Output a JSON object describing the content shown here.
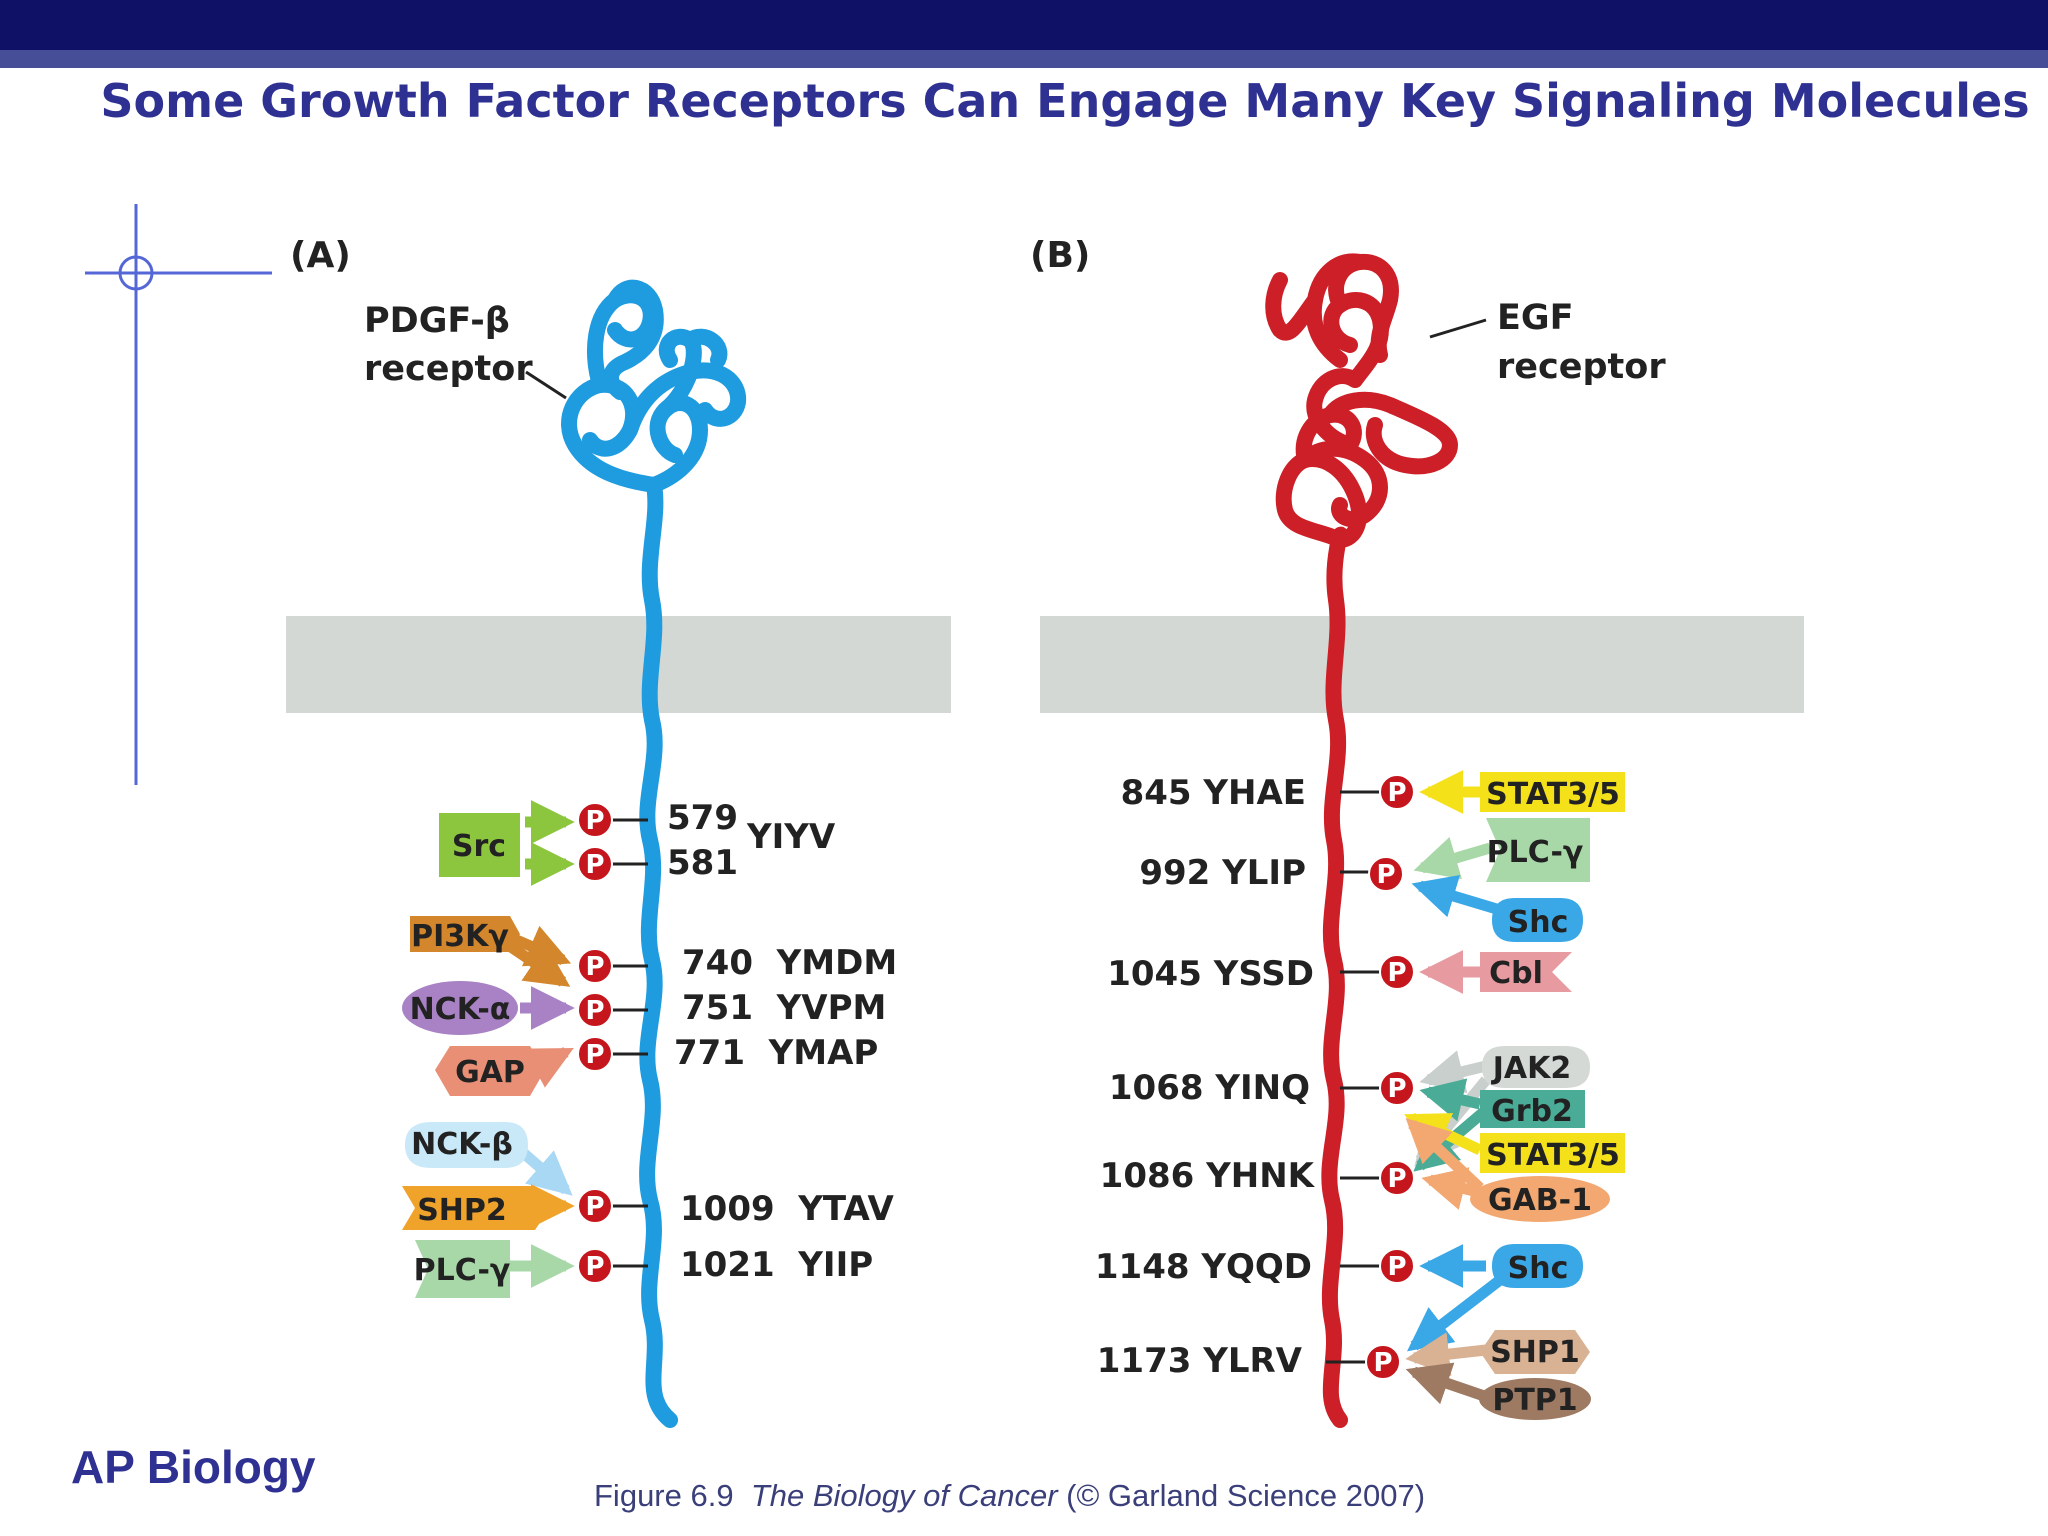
{
  "title": "Some Growth Factor Receptors Can Engage Many Key Signaling Molecules",
  "footer": {
    "course": "AP Biology",
    "figure_ref": "Figure 6.9",
    "book": "The Biology of Cancer",
    "copyright": "(© Garland Science 2007)"
  },
  "phospho_symbol": "P",
  "panel_a": {
    "letter": "(A)",
    "receptor_line1": "PDGF-β",
    "receptor_line2": "receptor",
    "sites": [
      "579",
      "581",
      "YIYV",
      "740  YMDM",
      "751  YVPM",
      "771  YMAP",
      "1009  YTAV",
      "1021  YIIP"
    ],
    "molecules": [
      "Src",
      "PI3Kγ",
      "NCK-α",
      "GAP",
      "NCK-β",
      "SHP2",
      "PLC-γ"
    ]
  },
  "panel_b": {
    "letter": "(B)",
    "receptor_line1": "EGF",
    "receptor_line2": "receptor",
    "sites": [
      "845 YHAE",
      "992 YLIP",
      "1045 YSSD",
      "1068 YINQ",
      "1086 YHNK",
      "1148 YQQD",
      "1173 YLRV"
    ],
    "molecules": [
      "STAT3/5",
      "PLC-γ",
      "Shc",
      "Cbl",
      "JAK2",
      "Grb2",
      "STAT3/5",
      "GAB-1",
      "Shc",
      "SHP1",
      "PTP1"
    ]
  },
  "colors": {
    "pdgf_receptor": "#1f9be0",
    "egf_receptor": "#cc1f27",
    "membrane": "#d3d8d4",
    "phospho": "#c4161c"
  }
}
